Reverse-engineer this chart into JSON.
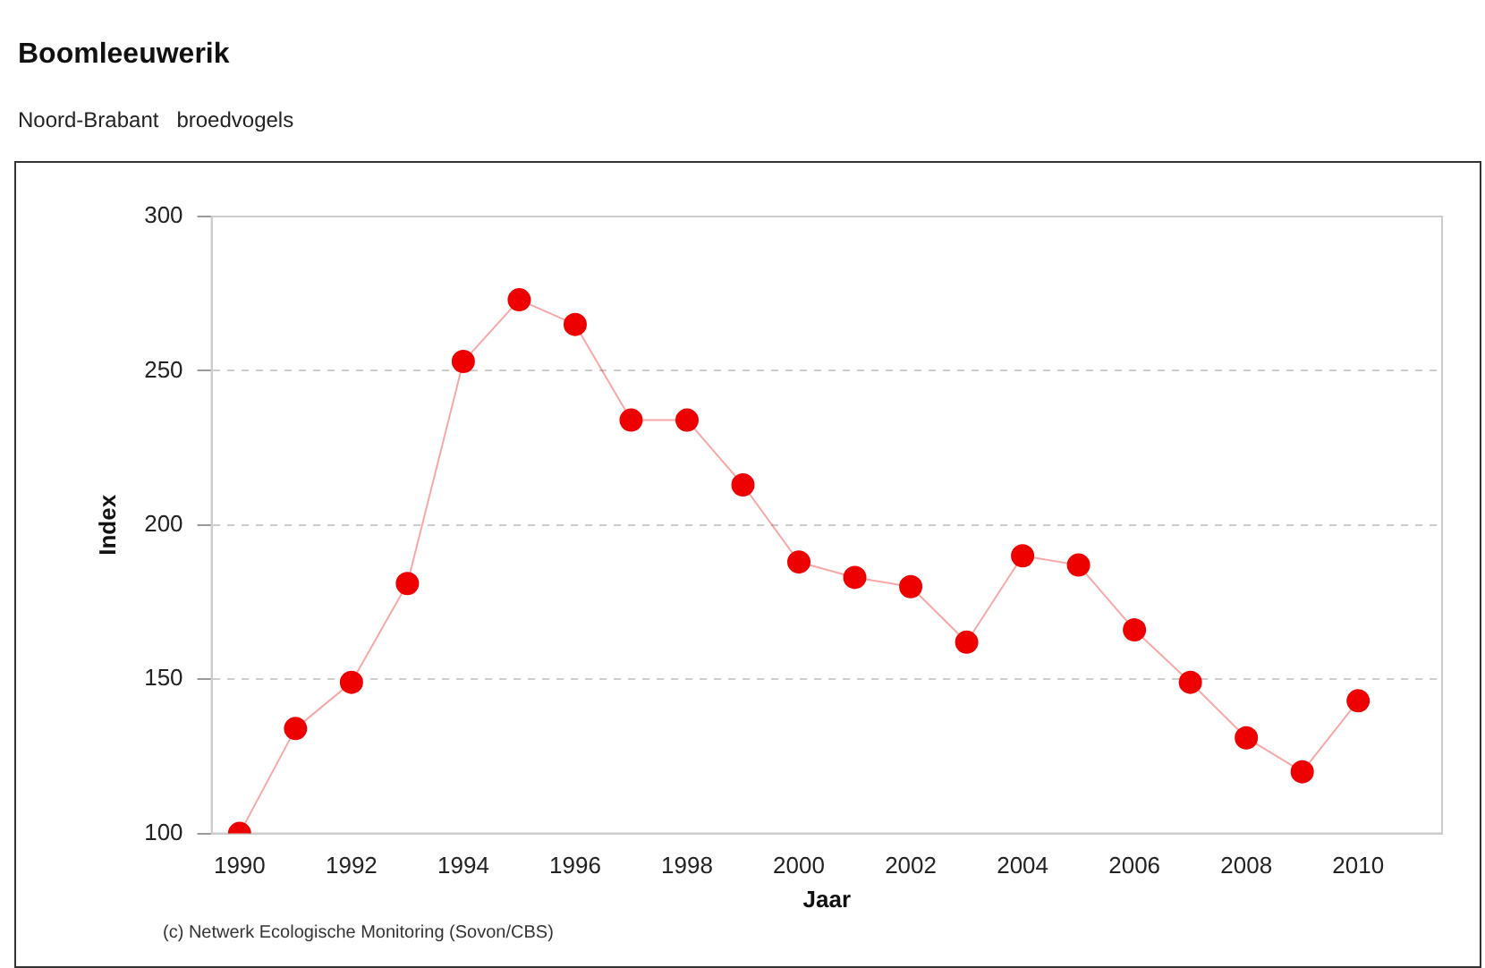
{
  "chart_data": {
    "type": "line",
    "title": "Boomleeuwerik",
    "subtitle": "Noord-Brabant   broedvogels",
    "xlabel": "Jaar",
    "ylabel": "Index",
    "x": [
      1990,
      1991,
      1992,
      1993,
      1994,
      1995,
      1996,
      1997,
      1998,
      1999,
      2000,
      2001,
      2002,
      2003,
      2004,
      2005,
      2006,
      2007,
      2008,
      2009,
      2010
    ],
    "series": [
      {
        "color": "#ee0000",
        "values": [
          100,
          134,
          149,
          181,
          253,
          273,
          265,
          234,
          234,
          213,
          188,
          183,
          180,
          162,
          190,
          187,
          166,
          149,
          131,
          120,
          143
        ]
      }
    ],
    "xlim": [
      1989.5,
      2011.5
    ],
    "xticks": [
      1990,
      1992,
      1994,
      1996,
      1998,
      2000,
      2002,
      2004,
      2006,
      2008,
      2010
    ],
    "ylim": [
      100,
      300
    ],
    "yticks": [
      100,
      150,
      200,
      250,
      300
    ],
    "grid": "y",
    "marker": "circle",
    "line_style": "solid",
    "legend": false,
    "annotations": [
      "(c) Netwerk Ecologische Monitoring (Sovon/CBS)"
    ]
  }
}
